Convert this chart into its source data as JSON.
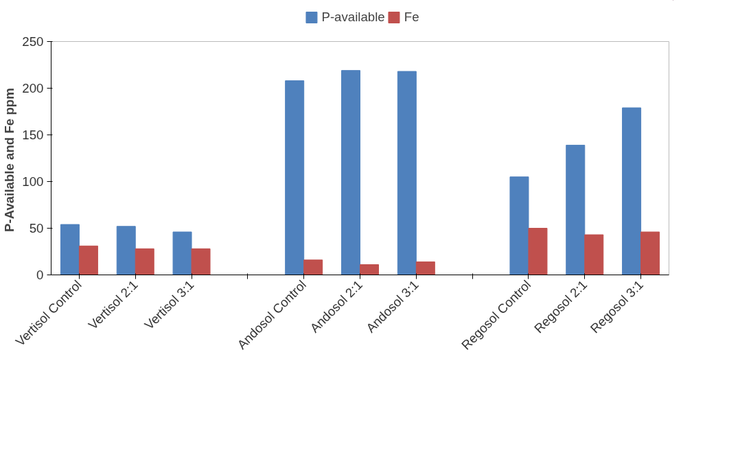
{
  "chart_data": {
    "type": "bar",
    "ylabel": "P-Available  and Fe ppm",
    "categories": [
      "Vertisol Control",
      "Vertisol 2:1",
      "Vertisol 3:1",
      null,
      "Andosol Control",
      "Andosol 2:1",
      "Andosol 3:1",
      null,
      "Regosol Control",
      "Regosol 2:1",
      "Regosol 3:1"
    ],
    "series": [
      {
        "name": "P-available",
        "color": "#4f81bd",
        "values": [
          54,
          52,
          46,
          null,
          208,
          219,
          218,
          null,
          105,
          139,
          179
        ]
      },
      {
        "name": "Fe",
        "color": "#c0504d",
        "values": [
          31,
          28,
          28,
          null,
          16,
          11,
          14,
          null,
          50,
          43,
          46
        ]
      }
    ],
    "ylim": [
      0,
      250
    ],
    "yticks": [
      0,
      50,
      100,
      150,
      200,
      250
    ],
    "grid": false,
    "legend": "top"
  }
}
